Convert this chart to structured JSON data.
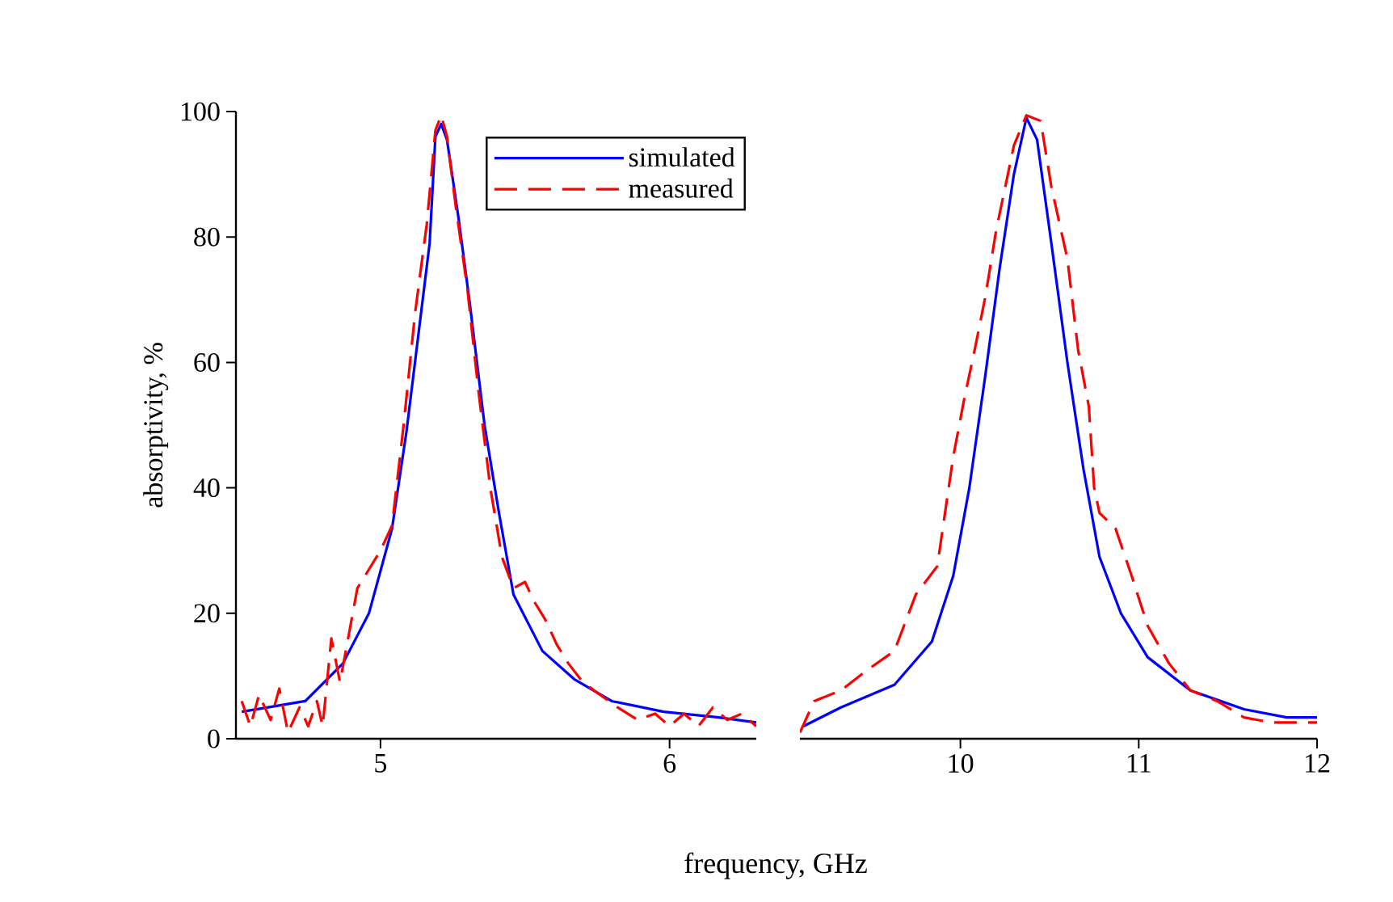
{
  "chart_data": [
    {
      "type": "line",
      "xlabel": "frequency, GHz",
      "ylabel": "absorptivity, %",
      "xlim": [
        4.5,
        6.3
      ],
      "ylim": [
        0,
        100
      ],
      "xticks": [
        5,
        6
      ],
      "yticks": [
        0,
        20,
        40,
        60,
        80,
        100
      ],
      "legend": "top right",
      "grid": false,
      "marker": "none",
      "series": [
        {
          "name": "simulated",
          "color": "#0000ff",
          "line_style": "solid",
          "x": [
            4.52,
            4.74,
            4.87,
            4.96,
            5.04,
            5.09,
            5.13,
            5.17,
            5.19,
            5.21,
            5.23,
            5.27,
            5.31,
            5.36,
            5.41,
            5.46,
            5.56,
            5.67,
            5.8,
            5.98,
            6.17,
            6.3
          ],
          "values": [
            4.3,
            6,
            12,
            20,
            33.5,
            49,
            64,
            79,
            96,
            98,
            95.5,
            83,
            69,
            50,
            36,
            23,
            14,
            9.5,
            6,
            4.3,
            3.4,
            2.6
          ]
        },
        {
          "name": "measured",
          "color": "#ff0000",
          "line_style": "dashed",
          "x": [
            4.52,
            4.55,
            4.58,
            4.62,
            4.65,
            4.68,
            4.72,
            4.75,
            4.78,
            4.8,
            4.83,
            4.86,
            4.88,
            4.92,
            4.96,
            5.0,
            5.04,
            5.08,
            5.12,
            5.16,
            5.19,
            5.21,
            5.23,
            5.26,
            5.3,
            5.34,
            5.38,
            5.42,
            5.46,
            5.5,
            5.53,
            5.57,
            5.61,
            5.65,
            5.7,
            5.76,
            5.82,
            5.89,
            5.95,
            6.0,
            6.05,
            6.1,
            6.15,
            6.2,
            6.25,
            6.3
          ],
          "values": [
            6,
            2,
            7,
            3,
            8,
            1,
            5,
            2,
            6,
            2,
            16,
            9,
            14,
            24,
            27,
            30,
            34,
            50,
            68,
            82,
            97,
            99.4,
            96,
            85,
            72,
            55,
            40,
            29,
            24,
            25,
            22,
            19,
            15,
            12,
            9,
            7,
            5,
            3,
            4,
            2,
            4,
            2,
            5,
            3,
            4,
            2
          ]
        }
      ]
    },
    {
      "type": "line",
      "xlim": [
        9.1,
        12
      ],
      "ylim": [
        0,
        100
      ],
      "xticks": [
        10,
        11,
        12
      ],
      "tick_labels": "x",
      "grid": false,
      "marker": "none",
      "series": [
        {
          "color": "#0000ff",
          "line_style": "solid",
          "x": [
            9.12,
            9.33,
            9.63,
            9.84,
            9.96,
            10.05,
            10.14,
            10.22,
            10.3,
            10.37,
            10.43,
            10.51,
            10.6,
            10.69,
            10.78,
            10.9,
            11.05,
            11.29,
            11.59,
            11.83,
            12
          ],
          "values": [
            2,
            5,
            8.6,
            15.5,
            26,
            40,
            58,
            75,
            90,
            99,
            95.5,
            79,
            60,
            43,
            29,
            20,
            13,
            7.7,
            4.7,
            3.4,
            3.4
          ]
        },
        {
          "color": "#ff0000",
          "line_style": "dashed",
          "x": [
            9.1,
            9.18,
            9.33,
            9.48,
            9.63,
            9.75,
            9.87,
            9.96,
            10.02,
            10.08,
            10.14,
            10.2,
            10.3,
            10.37,
            10.45,
            10.51,
            10.6,
            10.66,
            10.72,
            10.75,
            10.78,
            10.87,
            10.96,
            11.05,
            11.17,
            11.29,
            11.44,
            11.59,
            11.74,
            12
          ],
          "values": [
            1,
            6,
            7.7,
            11,
            14,
            23,
            27.5,
            45,
            54,
            62,
            70.5,
            81,
            94.6,
            99.4,
            98.5,
            88,
            76.5,
            62,
            53,
            40,
            36,
            33.5,
            26,
            18,
            12,
            7.7,
            6,
            3.4,
            2.6,
            2.6
          ]
        }
      ]
    }
  ]
}
